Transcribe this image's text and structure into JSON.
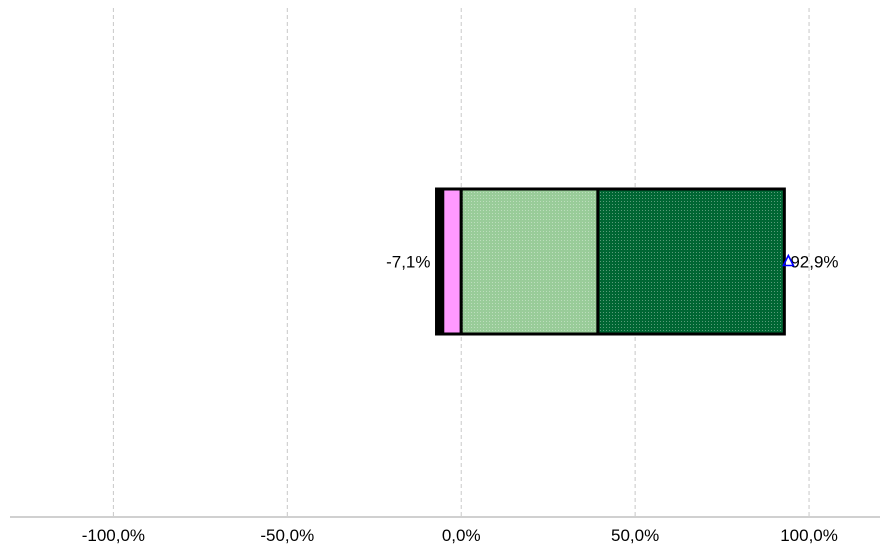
{
  "chart_data": {
    "type": "bar",
    "orientation": "horizontal",
    "stacked": "diverging",
    "xlim": [
      -132.6,
      120.4
    ],
    "ticks": [
      {
        "value": -100,
        "label": "-100,0%"
      },
      {
        "value": -50,
        "label": "-50,0%"
      },
      {
        "value": 0,
        "label": "0,0%"
      },
      {
        "value": 50,
        "label": "50,0%"
      },
      {
        "value": 100,
        "label": "100,0%"
      }
    ],
    "grid": true,
    "segments": [
      {
        "start": -7.1,
        "end": -5.3,
        "color": "#000000"
      },
      {
        "start": -5.3,
        "end": 0.0,
        "color": "#ff99ff"
      },
      {
        "start": 0.0,
        "end": 39.3,
        "color": "#99cc99",
        "pattern": true
      },
      {
        "start": 39.3,
        "end": 92.9,
        "color": "#006633",
        "pattern": true
      }
    ],
    "negative_total_label": "-7,1%",
    "positive_total_label": "92,9%",
    "marker": {
      "value": 92.9,
      "shape": "triangle",
      "color": "#0000ff"
    }
  }
}
